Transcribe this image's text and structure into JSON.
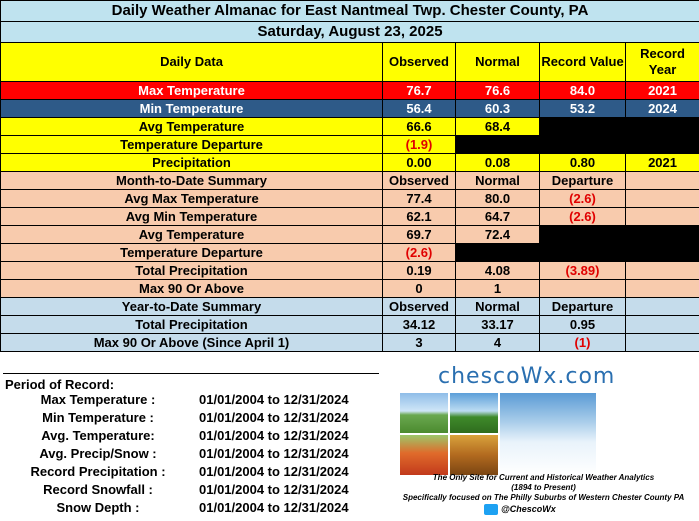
{
  "title": "Daily Weather Almanac for East Nantmeal Twp.  Chester County, PA",
  "date": "Saturday, August 23, 2025",
  "headers": {
    "daily": "Daily Data",
    "observed": "Observed",
    "normal": "Normal",
    "record_value": "Record Value",
    "record_year": "Record Year"
  },
  "daily": {
    "max": {
      "label": "Max Temperature",
      "observed": "76.7",
      "normal": "76.6",
      "record": "84.0",
      "year": "2021"
    },
    "min": {
      "label": "Min Temperature",
      "observed": "56.4",
      "normal": "60.3",
      "record": "53.2",
      "year": "2024"
    },
    "avg": {
      "label": "Avg Temperature",
      "observed": "66.6",
      "normal": "68.4"
    },
    "dep": {
      "label": "Temperature Departure",
      "observed": "(1.9)"
    },
    "precip": {
      "label": "Precipitation",
      "observed": "0.00",
      "normal": "0.08",
      "record": "0.80",
      "year": "2021"
    }
  },
  "mtd": {
    "header": {
      "label": "Month-to-Date Summary",
      "observed": "Observed",
      "normal": "Normal",
      "departure": "Departure"
    },
    "avg_max": {
      "label": "Avg Max Temperature",
      "observed": "77.4",
      "normal": "80.0",
      "departure": "(2.6)"
    },
    "avg_min": {
      "label": "Avg Min Temperature",
      "observed": "62.1",
      "normal": "64.7",
      "departure": "(2.6)"
    },
    "avg": {
      "label": "Avg Temperature",
      "observed": "69.7",
      "normal": "72.4"
    },
    "dep": {
      "label": "Temperature Departure",
      "observed": "(2.6)"
    },
    "precip": {
      "label": "Total Precipitation",
      "observed": "0.19",
      "normal": "4.08",
      "departure": "(3.89)"
    },
    "max90": {
      "label": "Max 90 Or Above",
      "observed": "0",
      "normal": "1"
    }
  },
  "ytd": {
    "header": {
      "label": "Year-to-Date Summary",
      "observed": "Observed",
      "normal": "Normal",
      "departure": "Departure"
    },
    "precip": {
      "label": "Total Precipitation",
      "observed": "34.12",
      "normal": "33.17",
      "departure": "0.95"
    },
    "max90": {
      "label": "Max 90 Or Above (Since April 1)",
      "observed": "3",
      "normal": "4",
      "departure": "(1)"
    }
  },
  "period": {
    "heading": "Period of Record:",
    "rows": [
      {
        "label": "Max Temperature :",
        "range": "01/01/2004 to 12/31/2024"
      },
      {
        "label": "Min Temperature :",
        "range": "01/01/2004 to 12/31/2024"
      },
      {
        "label": "Avg. Temperature:",
        "range": "01/01/2004 to 12/31/2024"
      },
      {
        "label": "Avg. Precip/Snow :",
        "range": "01/01/2004 to 12/31/2024"
      },
      {
        "label": "Record Precipitation :",
        "range": "01/01/2004 to 12/31/2024"
      },
      {
        "label": "Record Snowfall :",
        "range": "01/01/2004 to 12/31/2024"
      },
      {
        "label": "Snow Depth :",
        "range": "01/01/2004 to 12/31/2024"
      }
    ]
  },
  "logo": {
    "brand": "chescoWx.com",
    "tagline1": "The Only Site for Current and Historical Weather Analytics",
    "tagline2": "(1894 to Present)",
    "tagline3": "Specifically focused on The Philly Suburbs of Western Chester County PA",
    "twitter": "@ChescoWx"
  },
  "colors": {
    "title_bg": "#bfe3ef",
    "header_bg": "#ffff00",
    "max_bg": "#ff0000",
    "min_bg": "#2e5a88",
    "mtd_bg": "#f8cbad",
    "ytd_bg": "#c5dceb",
    "negative": "#e00000"
  }
}
